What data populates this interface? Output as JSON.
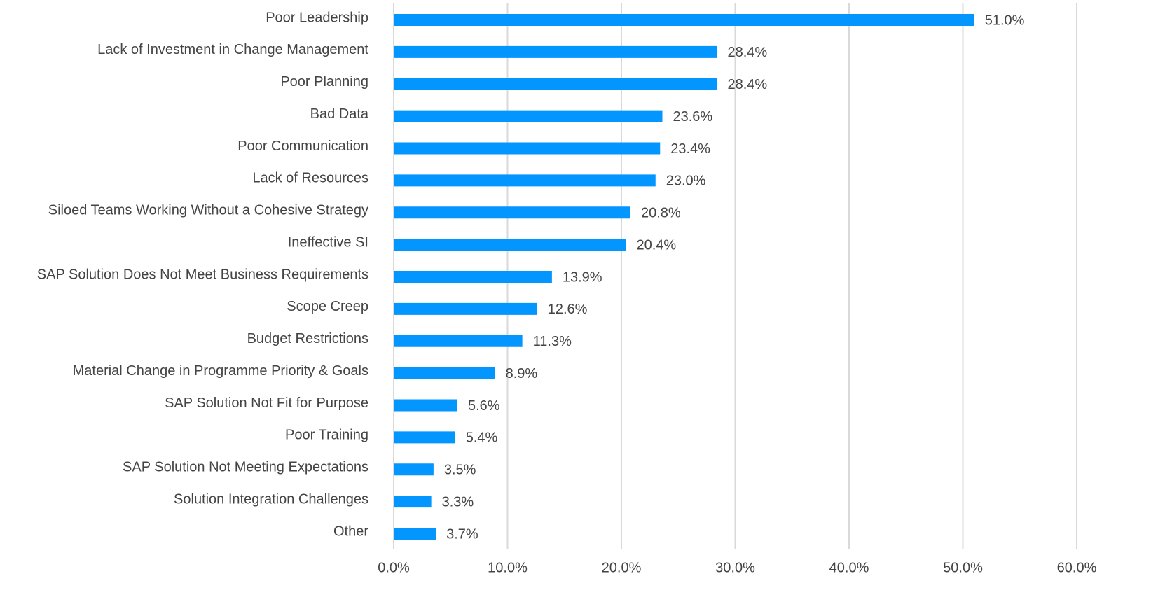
{
  "chart_data": {
    "type": "bar",
    "orientation": "horizontal",
    "color": "#0496ff",
    "grid": true,
    "categories": [
      "Poor Leadership",
      "Lack of Investment in Change Management",
      "Poor Planning",
      "Bad Data",
      "Poor Communication",
      "Lack of Resources",
      "Siloed Teams Working Without a Cohesive Strategy",
      "Ineffective SI",
      "SAP Solution Does Not Meet Business Requirements",
      "Scope Creep",
      "Budget Restrictions",
      "Material Change in Programme Priority & Goals",
      "SAP Solution Not Fit for Purpose",
      "Poor Training",
      "SAP Solution Not Meeting Expectations",
      "Solution Integration Challenges",
      "Other"
    ],
    "values": [
      51.0,
      28.4,
      28.4,
      23.6,
      23.4,
      23.0,
      20.8,
      20.4,
      13.9,
      12.6,
      11.3,
      8.9,
      5.6,
      5.4,
      3.5,
      3.3,
      3.7
    ],
    "value_labels": [
      "51.0%",
      "28.4%",
      "28.4%",
      "23.6%",
      "23.4%",
      "23.0%",
      "20.8%",
      "20.4%",
      "13.9%",
      "12.6%",
      "11.3%",
      "8.9%",
      "5.6%",
      "5.4%",
      "3.5%",
      "3.3%",
      "3.7%"
    ],
    "xlim": [
      0,
      60
    ],
    "xticks": [
      {
        "value": 0,
        "label": "0.0%"
      },
      {
        "value": 10,
        "label": "10.0%"
      },
      {
        "value": 20,
        "label": "20.0%"
      },
      {
        "value": 30,
        "label": "30.0%"
      },
      {
        "value": 40,
        "label": "40.0%"
      },
      {
        "value": 50,
        "label": "50.0%"
      },
      {
        "value": 60,
        "label": "60.0%"
      }
    ]
  }
}
